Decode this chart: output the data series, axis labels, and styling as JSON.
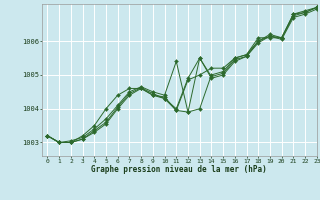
{
  "xlabel": "Graphe pression niveau de la mer (hPa)",
  "background_color": "#cce8ee",
  "grid_color": "#ffffff",
  "line_color": "#2d6a2d",
  "marker_color": "#2d6a2d",
  "xlim": [
    -0.5,
    23
  ],
  "ylim": [
    1002.6,
    1007.1
  ],
  "yticks": [
    1003,
    1004,
    1005,
    1006
  ],
  "xticks": [
    0,
    1,
    2,
    3,
    4,
    5,
    6,
    7,
    8,
    9,
    10,
    11,
    12,
    13,
    14,
    15,
    16,
    17,
    18,
    19,
    20,
    21,
    22,
    23
  ],
  "series": [
    [
      1003.2,
      1003.0,
      1003.0,
      1003.2,
      1003.5,
      1004.0,
      1004.4,
      1004.6,
      1004.6,
      1004.4,
      1004.3,
      1003.95,
      1004.85,
      1005.0,
      1005.2,
      1005.2,
      1005.5,
      1005.6,
      1006.1,
      1006.1,
      1006.1,
      1006.8,
      1006.9,
      1007.0
    ],
    [
      1003.2,
      1003.0,
      1003.05,
      1003.15,
      1003.4,
      1003.7,
      1004.1,
      1004.5,
      1004.65,
      1004.5,
      1004.4,
      1005.4,
      1003.9,
      1004.0,
      1005.0,
      1005.1,
      1005.5,
      1005.6,
      1006.0,
      1006.2,
      1006.1,
      1006.8,
      1006.85,
      1007.0
    ],
    [
      1003.2,
      1003.0,
      1003.0,
      1003.1,
      1003.35,
      1003.6,
      1004.05,
      1004.45,
      1004.62,
      1004.45,
      1004.3,
      1004.0,
      1004.9,
      1005.5,
      1004.95,
      1005.05,
      1005.45,
      1005.55,
      1006.0,
      1006.15,
      1006.1,
      1006.75,
      1006.85,
      1007.0
    ],
    [
      1003.2,
      1003.0,
      1003.0,
      1003.1,
      1003.3,
      1003.55,
      1004.0,
      1004.4,
      1004.6,
      1004.4,
      1004.35,
      1003.95,
      1003.9,
      1005.5,
      1004.9,
      1005.0,
      1005.4,
      1005.55,
      1005.95,
      1006.15,
      1006.05,
      1006.7,
      1006.8,
      1006.95
    ]
  ]
}
